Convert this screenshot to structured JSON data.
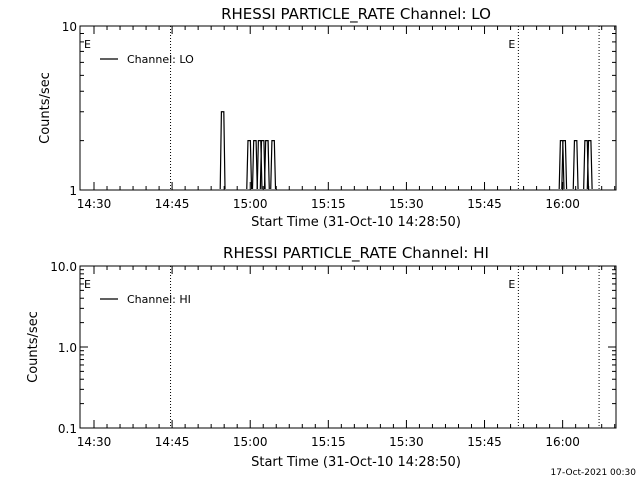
{
  "timestamp": "17-Oct-2021 00:30",
  "chart_data": [
    {
      "type": "line",
      "title": "RHESSI PARTICLE_RATE Channel: LO",
      "xlabel": "Start Time (31-Oct-10 14:28:50)",
      "ylabel": "Counts/sec",
      "x_range_minutes": [
        14.2,
        111.5
      ],
      "ylim": [
        1,
        10
      ],
      "yscale": "log",
      "y_ticks": [
        {
          "v": 1,
          "label": "1"
        },
        {
          "v": 10,
          "label": "10"
        }
      ],
      "x_ticks": [
        {
          "v": 30,
          "label": "14:30"
        },
        {
          "v": 45,
          "label": "14:45"
        },
        {
          "v": 60,
          "label": "15:00"
        },
        {
          "v": 75,
          "label": "15:15"
        },
        {
          "v": 90,
          "label": "15:30"
        },
        {
          "v": 105,
          "label": "15:45"
        },
        {
          "v": 120,
          "label": "16:00"
        }
      ],
      "legend": {
        "label": "Channel: LO",
        "position": "top-left"
      },
      "markers": [
        {
          "x": 30,
          "label": "E"
        },
        {
          "x": 111.5,
          "label": "E"
        }
      ],
      "vlines": [
        44.7,
        111.5,
        127.0
      ],
      "series": [
        {
          "name": "Channel: LO",
          "spikes": [
            {
              "x": 54.7,
              "y": 3
            },
            {
              "x": 59.8,
              "y": 2
            },
            {
              "x": 60.9,
              "y": 2
            },
            {
              "x": 61.8,
              "y": 2
            },
            {
              "x": 62.4,
              "y": 2
            },
            {
              "x": 63.2,
              "y": 2
            },
            {
              "x": 64.4,
              "y": 2
            },
            {
              "x": 119.8,
              "y": 2
            },
            {
              "x": 120.3,
              "y": 2
            },
            {
              "x": 122.5,
              "y": 2
            },
            {
              "x": 124.5,
              "y": 2
            },
            {
              "x": 125.2,
              "y": 2
            }
          ]
        }
      ]
    },
    {
      "type": "line",
      "title": "RHESSI PARTICLE_RATE Channel: HI",
      "xlabel": "Start Time (31-Oct-10 14:28:50)",
      "ylabel": "Counts/sec",
      "x_range_minutes": [
        14.2,
        111.5
      ],
      "ylim": [
        0.1,
        10
      ],
      "yscale": "log",
      "y_ticks": [
        {
          "v": 0.1,
          "label": "0.1"
        },
        {
          "v": 1,
          "label": "1.0"
        },
        {
          "v": 10,
          "label": "10.0"
        }
      ],
      "x_ticks": [
        {
          "v": 30,
          "label": "14:30"
        },
        {
          "v": 45,
          "label": "14:45"
        },
        {
          "v": 60,
          "label": "15:00"
        },
        {
          "v": 75,
          "label": "15:15"
        },
        {
          "v": 90,
          "label": "15:30"
        },
        {
          "v": 105,
          "label": "15:45"
        },
        {
          "v": 120,
          "label": "16:00"
        }
      ],
      "legend": {
        "label": "Channel: HI",
        "position": "top-left"
      },
      "markers": [
        {
          "x": 30,
          "label": "E"
        },
        {
          "x": 111.5,
          "label": "E"
        }
      ],
      "vlines": [
        44.7,
        111.5,
        127.0
      ],
      "series": [
        {
          "name": "Channel: HI",
          "spikes": []
        }
      ]
    }
  ]
}
